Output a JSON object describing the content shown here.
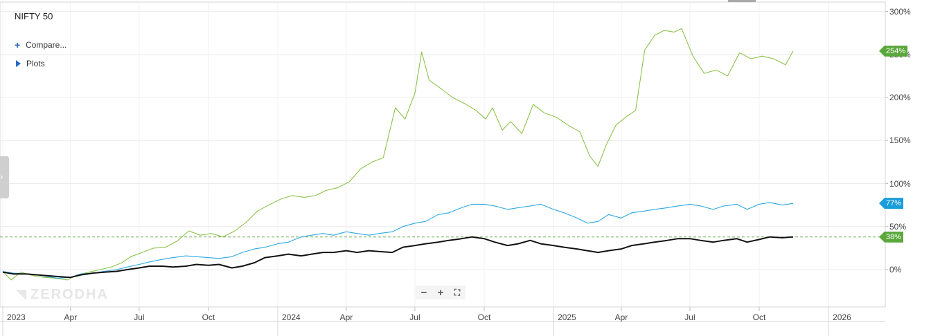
{
  "title": "NIFTY 50",
  "menu": {
    "compare_label": "Compare...",
    "plots_label": "Plots"
  },
  "watermark": "ZERODHA",
  "zoom": {
    "minus": "−",
    "plus": "+",
    "fullscreen": "⛶"
  },
  "side_tab_glyph": "›",
  "colors": {
    "green": "#8bc34a",
    "blue": "#29a8e0",
    "black": "#111111",
    "tag_green": "#5aa83c",
    "tag_blue": "#1a9ddb"
  },
  "y_ticks": [
    "300%",
    "250%",
    "200%",
    "150%",
    "100%",
    "50%",
    "0%"
  ],
  "x_ticks": [
    {
      "label": "2023",
      "year": true
    },
    {
      "label": "Apr"
    },
    {
      "label": "Jul"
    },
    {
      "label": "Oct"
    },
    {
      "label": "2024",
      "year": true
    },
    {
      "label": "Apr"
    },
    {
      "label": "Jul"
    },
    {
      "label": "Oct"
    },
    {
      "label": "2025",
      "year": true
    },
    {
      "label": "Apr"
    },
    {
      "label": "Jul"
    },
    {
      "label": "Oct"
    },
    {
      "label": "2026",
      "year": true
    }
  ],
  "tags": {
    "green": "254%",
    "blue": "77%",
    "black": "38%"
  },
  "chart_data": {
    "type": "line",
    "title": "NIFTY 50",
    "y_unit": "%",
    "ylim": [
      -42,
      302
    ],
    "xlim": [
      "2023-01-01",
      "2026-03-01"
    ],
    "grid": true,
    "series": [
      {
        "color": "#8bc34a",
        "points": [
          [
            "2023-01-01",
            -2
          ],
          [
            "2023-01-12",
            -12
          ],
          [
            "2023-01-25",
            -3
          ],
          [
            "2023-02-10",
            -7
          ],
          [
            "2023-02-25",
            -9
          ],
          [
            "2023-03-12",
            -10
          ],
          [
            "2023-03-28",
            -12
          ],
          [
            "2023-04-10",
            -6
          ],
          [
            "2023-04-25",
            -3
          ],
          [
            "2023-05-10",
            0
          ],
          [
            "2023-05-25",
            3
          ],
          [
            "2023-06-08",
            8
          ],
          [
            "2023-06-20",
            15
          ],
          [
            "2023-07-05",
            20
          ],
          [
            "2023-07-20",
            25
          ],
          [
            "2023-08-05",
            26
          ],
          [
            "2023-08-20",
            33
          ],
          [
            "2023-09-05",
            45
          ],
          [
            "2023-09-20",
            40
          ],
          [
            "2023-10-05",
            42
          ],
          [
            "2023-10-20",
            38
          ],
          [
            "2023-11-05",
            45
          ],
          [
            "2023-11-20",
            55
          ],
          [
            "2023-12-05",
            68
          ],
          [
            "2023-12-20",
            75
          ],
          [
            "2024-01-05",
            82
          ],
          [
            "2024-01-20",
            86
          ],
          [
            "2024-02-05",
            84
          ],
          [
            "2024-02-20",
            86
          ],
          [
            "2024-03-05",
            92
          ],
          [
            "2024-03-20",
            95
          ],
          [
            "2024-04-05",
            102
          ],
          [
            "2024-04-20",
            117
          ],
          [
            "2024-05-05",
            125
          ],
          [
            "2024-05-20",
            130
          ],
          [
            "2024-06-05",
            188
          ],
          [
            "2024-06-18",
            175
          ],
          [
            "2024-07-01",
            205
          ],
          [
            "2024-07-10",
            253
          ],
          [
            "2024-07-20",
            220
          ],
          [
            "2024-08-05",
            210
          ],
          [
            "2024-08-20",
            200
          ],
          [
            "2024-09-05",
            193
          ],
          [
            "2024-09-20",
            185
          ],
          [
            "2024-10-03",
            175
          ],
          [
            "2024-10-12",
            188
          ],
          [
            "2024-10-25",
            162
          ],
          [
            "2024-11-05",
            172
          ],
          [
            "2024-11-20",
            158
          ],
          [
            "2024-12-05",
            192
          ],
          [
            "2024-12-20",
            182
          ],
          [
            "2025-01-05",
            177
          ],
          [
            "2025-01-20",
            168
          ],
          [
            "2025-02-05",
            160
          ],
          [
            "2025-02-18",
            132
          ],
          [
            "2025-03-01",
            120
          ],
          [
            "2025-03-12",
            145
          ],
          [
            "2025-03-25",
            168
          ],
          [
            "2025-04-08",
            178
          ],
          [
            "2025-04-20",
            185
          ],
          [
            "2025-05-02",
            255
          ],
          [
            "2025-05-15",
            272
          ],
          [
            "2025-05-28",
            278
          ],
          [
            "2025-06-10",
            276
          ],
          [
            "2025-06-20",
            280
          ],
          [
            "2025-07-05",
            248
          ],
          [
            "2025-07-20",
            228
          ],
          [
            "2025-08-05",
            232
          ],
          [
            "2025-08-20",
            225
          ],
          [
            "2025-09-05",
            252
          ],
          [
            "2025-09-20",
            245
          ],
          [
            "2025-10-05",
            248
          ],
          [
            "2025-10-20",
            245
          ],
          [
            "2025-11-05",
            238
          ],
          [
            "2025-11-15",
            254
          ]
        ]
      },
      {
        "color": "#29a8e0",
        "points": [
          [
            "2023-01-01",
            -2
          ],
          [
            "2023-01-15",
            -4
          ],
          [
            "2023-02-01",
            -5
          ],
          [
            "2023-02-15",
            -6
          ],
          [
            "2023-03-01",
            -8
          ],
          [
            "2023-03-15",
            -10
          ],
          [
            "2023-04-01",
            -9
          ],
          [
            "2023-04-15",
            -5
          ],
          [
            "2023-05-01",
            -4
          ],
          [
            "2023-05-15",
            -2
          ],
          [
            "2023-06-01",
            0
          ],
          [
            "2023-06-15",
            3
          ],
          [
            "2023-07-01",
            6
          ],
          [
            "2023-07-15",
            9
          ],
          [
            "2023-08-01",
            12
          ],
          [
            "2023-08-15",
            14
          ],
          [
            "2023-09-01",
            16
          ],
          [
            "2023-09-15",
            15
          ],
          [
            "2023-10-01",
            14
          ],
          [
            "2023-10-15",
            13
          ],
          [
            "2023-11-01",
            15
          ],
          [
            "2023-11-15",
            20
          ],
          [
            "2023-12-01",
            24
          ],
          [
            "2023-12-15",
            26
          ],
          [
            "2024-01-01",
            30
          ],
          [
            "2024-01-15",
            32
          ],
          [
            "2024-02-01",
            38
          ],
          [
            "2024-02-15",
            40
          ],
          [
            "2024-03-01",
            42
          ],
          [
            "2024-03-15",
            40
          ],
          [
            "2024-04-01",
            44
          ],
          [
            "2024-04-15",
            42
          ],
          [
            "2024-05-01",
            40
          ],
          [
            "2024-05-15",
            42
          ],
          [
            "2024-06-01",
            44
          ],
          [
            "2024-06-15",
            50
          ],
          [
            "2024-07-01",
            54
          ],
          [
            "2024-07-15",
            56
          ],
          [
            "2024-08-01",
            64
          ],
          [
            "2024-08-15",
            66
          ],
          [
            "2024-09-01",
            72
          ],
          [
            "2024-09-15",
            76
          ],
          [
            "2024-10-01",
            76
          ],
          [
            "2024-10-15",
            74
          ],
          [
            "2024-11-01",
            70
          ],
          [
            "2024-11-15",
            72
          ],
          [
            "2024-12-01",
            74
          ],
          [
            "2024-12-15",
            76
          ],
          [
            "2025-01-01",
            70
          ],
          [
            "2025-01-15",
            66
          ],
          [
            "2025-02-01",
            60
          ],
          [
            "2025-02-15",
            54
          ],
          [
            "2025-03-01",
            56
          ],
          [
            "2025-03-15",
            64
          ],
          [
            "2025-04-01",
            60
          ],
          [
            "2025-04-15",
            66
          ],
          [
            "2025-05-01",
            68
          ],
          [
            "2025-05-15",
            70
          ],
          [
            "2025-06-01",
            72
          ],
          [
            "2025-06-15",
            74
          ],
          [
            "2025-07-01",
            76
          ],
          [
            "2025-07-15",
            74
          ],
          [
            "2025-08-01",
            70
          ],
          [
            "2025-08-15",
            74
          ],
          [
            "2025-09-01",
            76
          ],
          [
            "2025-09-15",
            70
          ],
          [
            "2025-10-01",
            76
          ],
          [
            "2025-10-15",
            78
          ],
          [
            "2025-11-01",
            75
          ],
          [
            "2025-11-15",
            77
          ]
        ]
      },
      {
        "color": "#111111",
        "points": [
          [
            "2023-01-01",
            -3
          ],
          [
            "2023-01-15",
            -5
          ],
          [
            "2023-02-01",
            -5
          ],
          [
            "2023-02-15",
            -6
          ],
          [
            "2023-03-01",
            -7
          ],
          [
            "2023-03-15",
            -8
          ],
          [
            "2023-04-01",
            -9
          ],
          [
            "2023-04-15",
            -6
          ],
          [
            "2023-05-01",
            -4
          ],
          [
            "2023-05-15",
            -3
          ],
          [
            "2023-06-01",
            -2
          ],
          [
            "2023-06-15",
            0
          ],
          [
            "2023-07-01",
            2
          ],
          [
            "2023-07-15",
            4
          ],
          [
            "2023-08-01",
            4
          ],
          [
            "2023-08-15",
            3
          ],
          [
            "2023-09-01",
            4
          ],
          [
            "2023-09-15",
            6
          ],
          [
            "2023-10-01",
            5
          ],
          [
            "2023-10-15",
            6
          ],
          [
            "2023-11-01",
            2
          ],
          [
            "2023-11-15",
            4
          ],
          [
            "2023-12-01",
            8
          ],
          [
            "2023-12-15",
            14
          ],
          [
            "2024-01-01",
            16
          ],
          [
            "2024-01-15",
            18
          ],
          [
            "2024-02-01",
            16
          ],
          [
            "2024-02-15",
            18
          ],
          [
            "2024-03-01",
            20
          ],
          [
            "2024-03-15",
            20
          ],
          [
            "2024-04-01",
            22
          ],
          [
            "2024-04-15",
            20
          ],
          [
            "2024-05-01",
            22
          ],
          [
            "2024-05-15",
            21
          ],
          [
            "2024-06-01",
            20
          ],
          [
            "2024-06-15",
            26
          ],
          [
            "2024-07-01",
            28
          ],
          [
            "2024-07-15",
            30
          ],
          [
            "2024-08-01",
            32
          ],
          [
            "2024-08-15",
            34
          ],
          [
            "2024-09-01",
            36
          ],
          [
            "2024-09-15",
            38
          ],
          [
            "2024-10-01",
            36
          ],
          [
            "2024-10-15",
            32
          ],
          [
            "2024-11-01",
            28
          ],
          [
            "2024-11-15",
            30
          ],
          [
            "2024-12-01",
            34
          ],
          [
            "2024-12-15",
            30
          ],
          [
            "2025-01-01",
            28
          ],
          [
            "2025-01-15",
            26
          ],
          [
            "2025-02-01",
            24
          ],
          [
            "2025-02-15",
            22
          ],
          [
            "2025-03-01",
            20
          ],
          [
            "2025-03-15",
            22
          ],
          [
            "2025-04-01",
            24
          ],
          [
            "2025-04-15",
            28
          ],
          [
            "2025-05-01",
            30
          ],
          [
            "2025-05-15",
            32
          ],
          [
            "2025-06-01",
            34
          ],
          [
            "2025-06-15",
            36
          ],
          [
            "2025-07-01",
            36
          ],
          [
            "2025-07-15",
            34
          ],
          [
            "2025-08-01",
            32
          ],
          [
            "2025-08-15",
            34
          ],
          [
            "2025-09-01",
            36
          ],
          [
            "2025-09-15",
            32
          ],
          [
            "2025-10-01",
            35
          ],
          [
            "2025-10-15",
            38
          ],
          [
            "2025-11-01",
            37
          ],
          [
            "2025-11-15",
            38
          ]
        ]
      }
    ],
    "reference_line": {
      "y": 38,
      "color": "#6aa84f",
      "style": "dashed"
    }
  }
}
